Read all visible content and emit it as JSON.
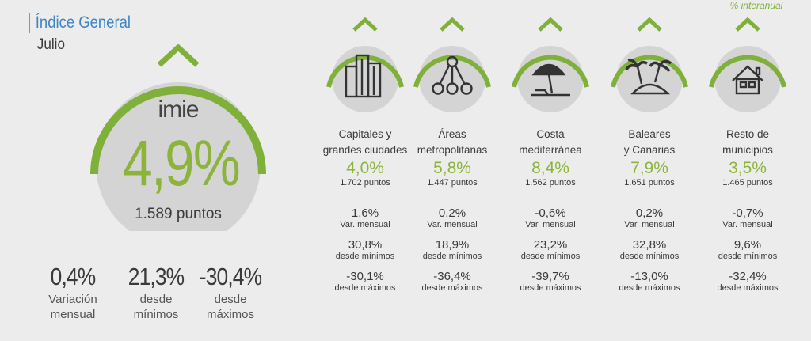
{
  "header": {
    "title": "Índice General",
    "subtitle": "Julio"
  },
  "main": {
    "logo": "imie",
    "value": "4,9%",
    "points": "1.589 puntos",
    "stats": [
      {
        "value": "0,4%",
        "label_1": "Variación",
        "label_2": "mensual"
      },
      {
        "value": "21,3%",
        "label_1": "desde",
        "label_2": "mínimos"
      },
      {
        "value": "-30,4%",
        "label_1": "desde",
        "label_2": "máximos"
      }
    ]
  },
  "note": "% interanual",
  "colors": {
    "green": "#8cb43c",
    "arc": "#7fb03a",
    "blue": "#3f86c4",
    "circle": "#d4d4d4"
  },
  "columns": [
    {
      "icon": "buildings-icon",
      "name_1": "Capitales y",
      "name_2": "grandes ciudades",
      "value": "4,0%",
      "points": "1.702 puntos",
      "var_mensual": "1,6%",
      "var_label": "Var. mensual",
      "min": "30,8%",
      "min_label": "desde mínimos",
      "max": "-30,1%",
      "max_label": "desde máximos"
    },
    {
      "icon": "network-icon",
      "name_1": "Áreas",
      "name_2": "metropolitanas",
      "value": "5,8%",
      "points": "1.447 puntos",
      "var_mensual": "0,2%",
      "var_label": "Var. mensual",
      "min": "18,9%",
      "min_label": "desde mínimos",
      "max": "-36,4%",
      "max_label": "desde máximos"
    },
    {
      "icon": "beach-umbrella-icon",
      "name_1": "Costa",
      "name_2": "mediterránea",
      "value": "8,4%",
      "points": "1.562 puntos",
      "var_mensual": "-0,6%",
      "var_label": "Var. mensual",
      "min": "23,2%",
      "min_label": "desde mínimos",
      "max": "-39,7%",
      "max_label": "desde máximos"
    },
    {
      "icon": "island-icon",
      "name_1": "Baleares",
      "name_2": "y Canarias",
      "value": "7,9%",
      "points": "1.651 puntos",
      "var_mensual": "0,2%",
      "var_label": "Var. mensual",
      "min": "32,8%",
      "min_label": "desde mínimos",
      "max": "-13,0%",
      "max_label": "desde máximos"
    },
    {
      "icon": "house-icon",
      "name_1": "Resto de",
      "name_2": "municipios",
      "value": "3,5%",
      "points": "1.465 puntos",
      "var_mensual": "-0,7%",
      "var_label": "Var. mensual",
      "min": "9,6%",
      "min_label": "desde mínimos",
      "max": "-32,4%",
      "max_label": "desde máximos"
    }
  ]
}
